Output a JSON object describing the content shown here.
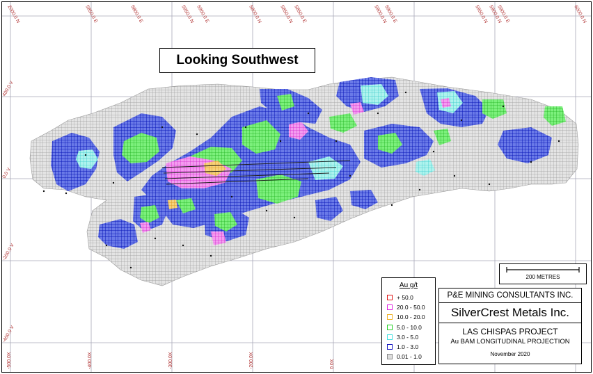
{
  "map": {
    "view_label": "Looking Southwest",
    "scale_label": "200 METRES",
    "top_ticks": [
      {
        "text": "2000.0 N",
        "color": "#c02020"
      },
      {
        "text": "5850.0 E",
        "color": "#c02020"
      },
      {
        "text": "5800.0 E",
        "color": "#c02020"
      },
      {
        "text": "5950.0 N",
        "color": "#c02020"
      },
      {
        "text": "5950.0 E",
        "color": "#c02020"
      },
      {
        "text": "5800.0 N",
        "color": "#c02020"
      },
      {
        "text": "5850.0 N",
        "color": "#c02020"
      },
      {
        "text": "5850.0 E",
        "color": "#c02020"
      },
      {
        "text": "5900.0 N",
        "color": "#c02020"
      },
      {
        "text": "5900.0 E",
        "color": "#c02020"
      },
      {
        "text": "5950.0 N",
        "color": "#c02020"
      },
      {
        "text": "5900.0 N",
        "color": "#c02020"
      },
      {
        "text": "5900.0 E",
        "color": "#c02020"
      },
      {
        "text": "6000.0 N",
        "color": "#c02020"
      }
    ],
    "left_ticks": [
      "400.0 V",
      "0.0 V",
      "-200.0 V",
      "-400.0 V"
    ],
    "bottom_ticks": [
      "-500.0X",
      "-400.0X",
      "-300.0X",
      "-200.0X",
      "0.0X"
    ]
  },
  "legend": {
    "title": "Au g/t",
    "items": [
      {
        "label": "+ 50.0",
        "color": "#e01010"
      },
      {
        "label": "20.0 - 50.0",
        "color": "#e020e0"
      },
      {
        "label": "10.0 - 20.0",
        "color": "#f0b020"
      },
      {
        "label": "5.0 - 10.0",
        "color": "#20d020"
      },
      {
        "label": "3.0 - 5.0",
        "color": "#40e0e0"
      },
      {
        "label": "1.0 - 3.0",
        "color": "#1010c0"
      },
      {
        "label": "0.01 - 1.0",
        "color": "#bbbbbb"
      }
    ]
  },
  "title_block": {
    "consultant": "P&E MINING CONSULTANTS INC.",
    "company": "SilverCrest Metals Inc.",
    "project": "LAS CHISPAS PROJECT",
    "subtitle": "Au BAM LONGITUDINAL PROJECTION",
    "date": "November 2020"
  }
}
